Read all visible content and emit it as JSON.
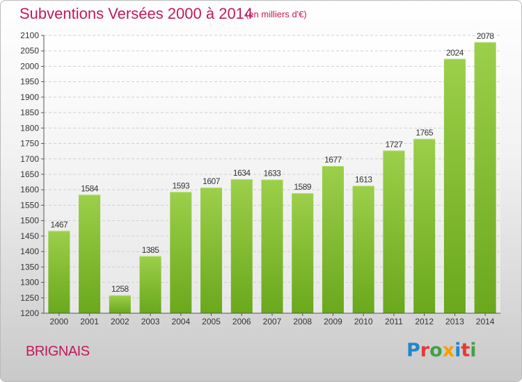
{
  "title": "Subventions Versées 2000 à 2014",
  "subtitle": "(en milliers d'€)",
  "city": "BRIGNAIS",
  "logo": {
    "letters": [
      "P",
      "r",
      "o",
      "x",
      "i",
      "t",
      "i"
    ],
    "colors": [
      "#1e88c9",
      "#e53935",
      "#43a047",
      "#f4a000",
      "#1e88c9",
      "#e53935",
      "#43a047"
    ]
  },
  "chart_data": {
    "type": "bar",
    "categories": [
      "2000",
      "2001",
      "2002",
      "2003",
      "2004",
      "2005",
      "2006",
      "2007",
      "2008",
      "2009",
      "2010",
      "2011",
      "2012",
      "2013",
      "2014"
    ],
    "values": [
      1467,
      1584,
      1258,
      1385,
      1593,
      1607,
      1634,
      1633,
      1589,
      1677,
      1613,
      1727,
      1765,
      2024,
      2078
    ],
    "ylim": [
      1200,
      2100
    ],
    "yticks": [
      1200,
      1250,
      1300,
      1350,
      1400,
      1450,
      1500,
      1550,
      1600,
      1650,
      1700,
      1750,
      1800,
      1850,
      1900,
      1950,
      2000,
      2050,
      2100
    ],
    "grid": true,
    "bar_color_top": "#9ccf4a",
    "bar_color_bottom": "#6aa81c"
  }
}
